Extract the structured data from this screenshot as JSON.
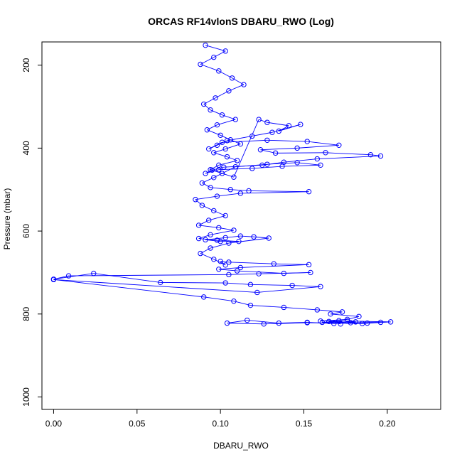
{
  "chart_data": {
    "type": "scatter",
    "title": "ORCAS RF14vlonS DBARU_RWO (Log)",
    "xlabel": "DBARU_RWO",
    "ylabel": "Pressure (mbar)",
    "xlim": [
      -0.007,
      0.232
    ],
    "ylim": [
      1030,
      144
    ],
    "y_reversed": true,
    "xticks": [
      0.0,
      0.05,
      0.1,
      0.15,
      0.2
    ],
    "xtick_labels": [
      "0.00",
      "0.05",
      "0.10",
      "0.15",
      "0.20"
    ],
    "yticks": [
      200,
      400,
      600,
      800,
      1000
    ],
    "ytick_labels": [
      "200",
      "400",
      "600",
      "800",
      "1000"
    ],
    "grid": false,
    "legend": "none",
    "point_color": "#0000ff",
    "line_color": "#0000ff",
    "series": [
      {
        "marker": "open-circle",
        "connected": true,
        "x": [
          0.091,
          0.103,
          0.096,
          0.088,
          0.099,
          0.107,
          0.114,
          0.105,
          0.097,
          0.09,
          0.094,
          0.101,
          0.109,
          0.098,
          0.092,
          0.1,
          0.106,
          0.112,
          0.103,
          0.096,
          0.104,
          0.11,
          0.099,
          0.094,
          0.101,
          0.108,
          0.123,
          0.128,
          0.141,
          0.135,
          0.148,
          0.131,
          0.119,
          0.104,
          0.098,
          0.093,
          0.101,
          0.128,
          0.152,
          0.171,
          0.146,
          0.124,
          0.133,
          0.163,
          0.19,
          0.196,
          0.158,
          0.138,
          0.125,
          0.102,
          0.095,
          0.091,
          0.099,
          0.119,
          0.137,
          0.16,
          0.146,
          0.128,
          0.109,
          0.096,
          0.089,
          0.094,
          0.106,
          0.117,
          0.153,
          0.112,
          0.098,
          0.085,
          0.089,
          0.096,
          0.103,
          0.093,
          0.087,
          0.099,
          0.108,
          0.094,
          0.087,
          0.098,
          0.111,
          0.1,
          0.091,
          0.103,
          0.112,
          0.12,
          0.129,
          0.105,
          0.094,
          0.088,
          0.096,
          0.103,
          0.1,
          0.105,
          0.132,
          0.153,
          0.112,
          0.099,
          0.11,
          0.138,
          0.154,
          0.123,
          0.105,
          0.009,
          0.0,
          0.024,
          0.064,
          0.103,
          0.118,
          0.143,
          0.16,
          0.122,
          0.0,
          0.09,
          0.108,
          0.118,
          0.138,
          0.158,
          0.173,
          0.166,
          0.183,
          0.176,
          0.16,
          0.171,
          0.181,
          0.168,
          0.152,
          0.135,
          0.116,
          0.104,
          0.126,
          0.152,
          0.185,
          0.202,
          0.176,
          0.161,
          0.188,
          0.196,
          0.178,
          0.165,
          0.172
        ],
        "y": [
          152,
          166,
          181,
          198,
          214,
          231,
          247,
          262,
          279,
          294,
          308,
          320,
          331,
          344,
          356,
          369,
          380,
          390,
          402,
          411,
          421,
          430,
          441,
          452,
          461,
          470,
          331,
          338,
          346,
          359,
          343,
          362,
          371,
          382,
          393,
          402,
          386,
          381,
          384,
          393,
          400,
          404,
          412,
          411,
          416,
          419,
          426,
          434,
          441,
          446,
          453,
          461,
          452,
          449,
          444,
          441,
          435,
          439,
          445,
          471,
          484,
          495,
          500,
          503,
          505,
          509,
          516,
          524,
          538,
          551,
          563,
          574,
          586,
          592,
          598,
          609,
          618,
          622,
          625,
          625,
          621,
          616,
          612,
          614,
          617,
          629,
          641,
          654,
          668,
          682,
          673,
          675,
          679,
          681,
          688,
          692,
          696,
          702,
          700,
          703,
          705,
          708,
          716,
          702,
          724,
          725,
          729,
          731,
          734,
          748,
          717,
          759,
          769,
          779,
          784,
          790,
          795,
          800,
          806,
          813,
          817,
          816,
          819,
          823,
          820,
          822,
          815,
          822,
          824,
          821,
          823,
          819,
          817,
          820,
          822,
          820,
          821,
          818,
          824
        ]
      }
    ]
  }
}
